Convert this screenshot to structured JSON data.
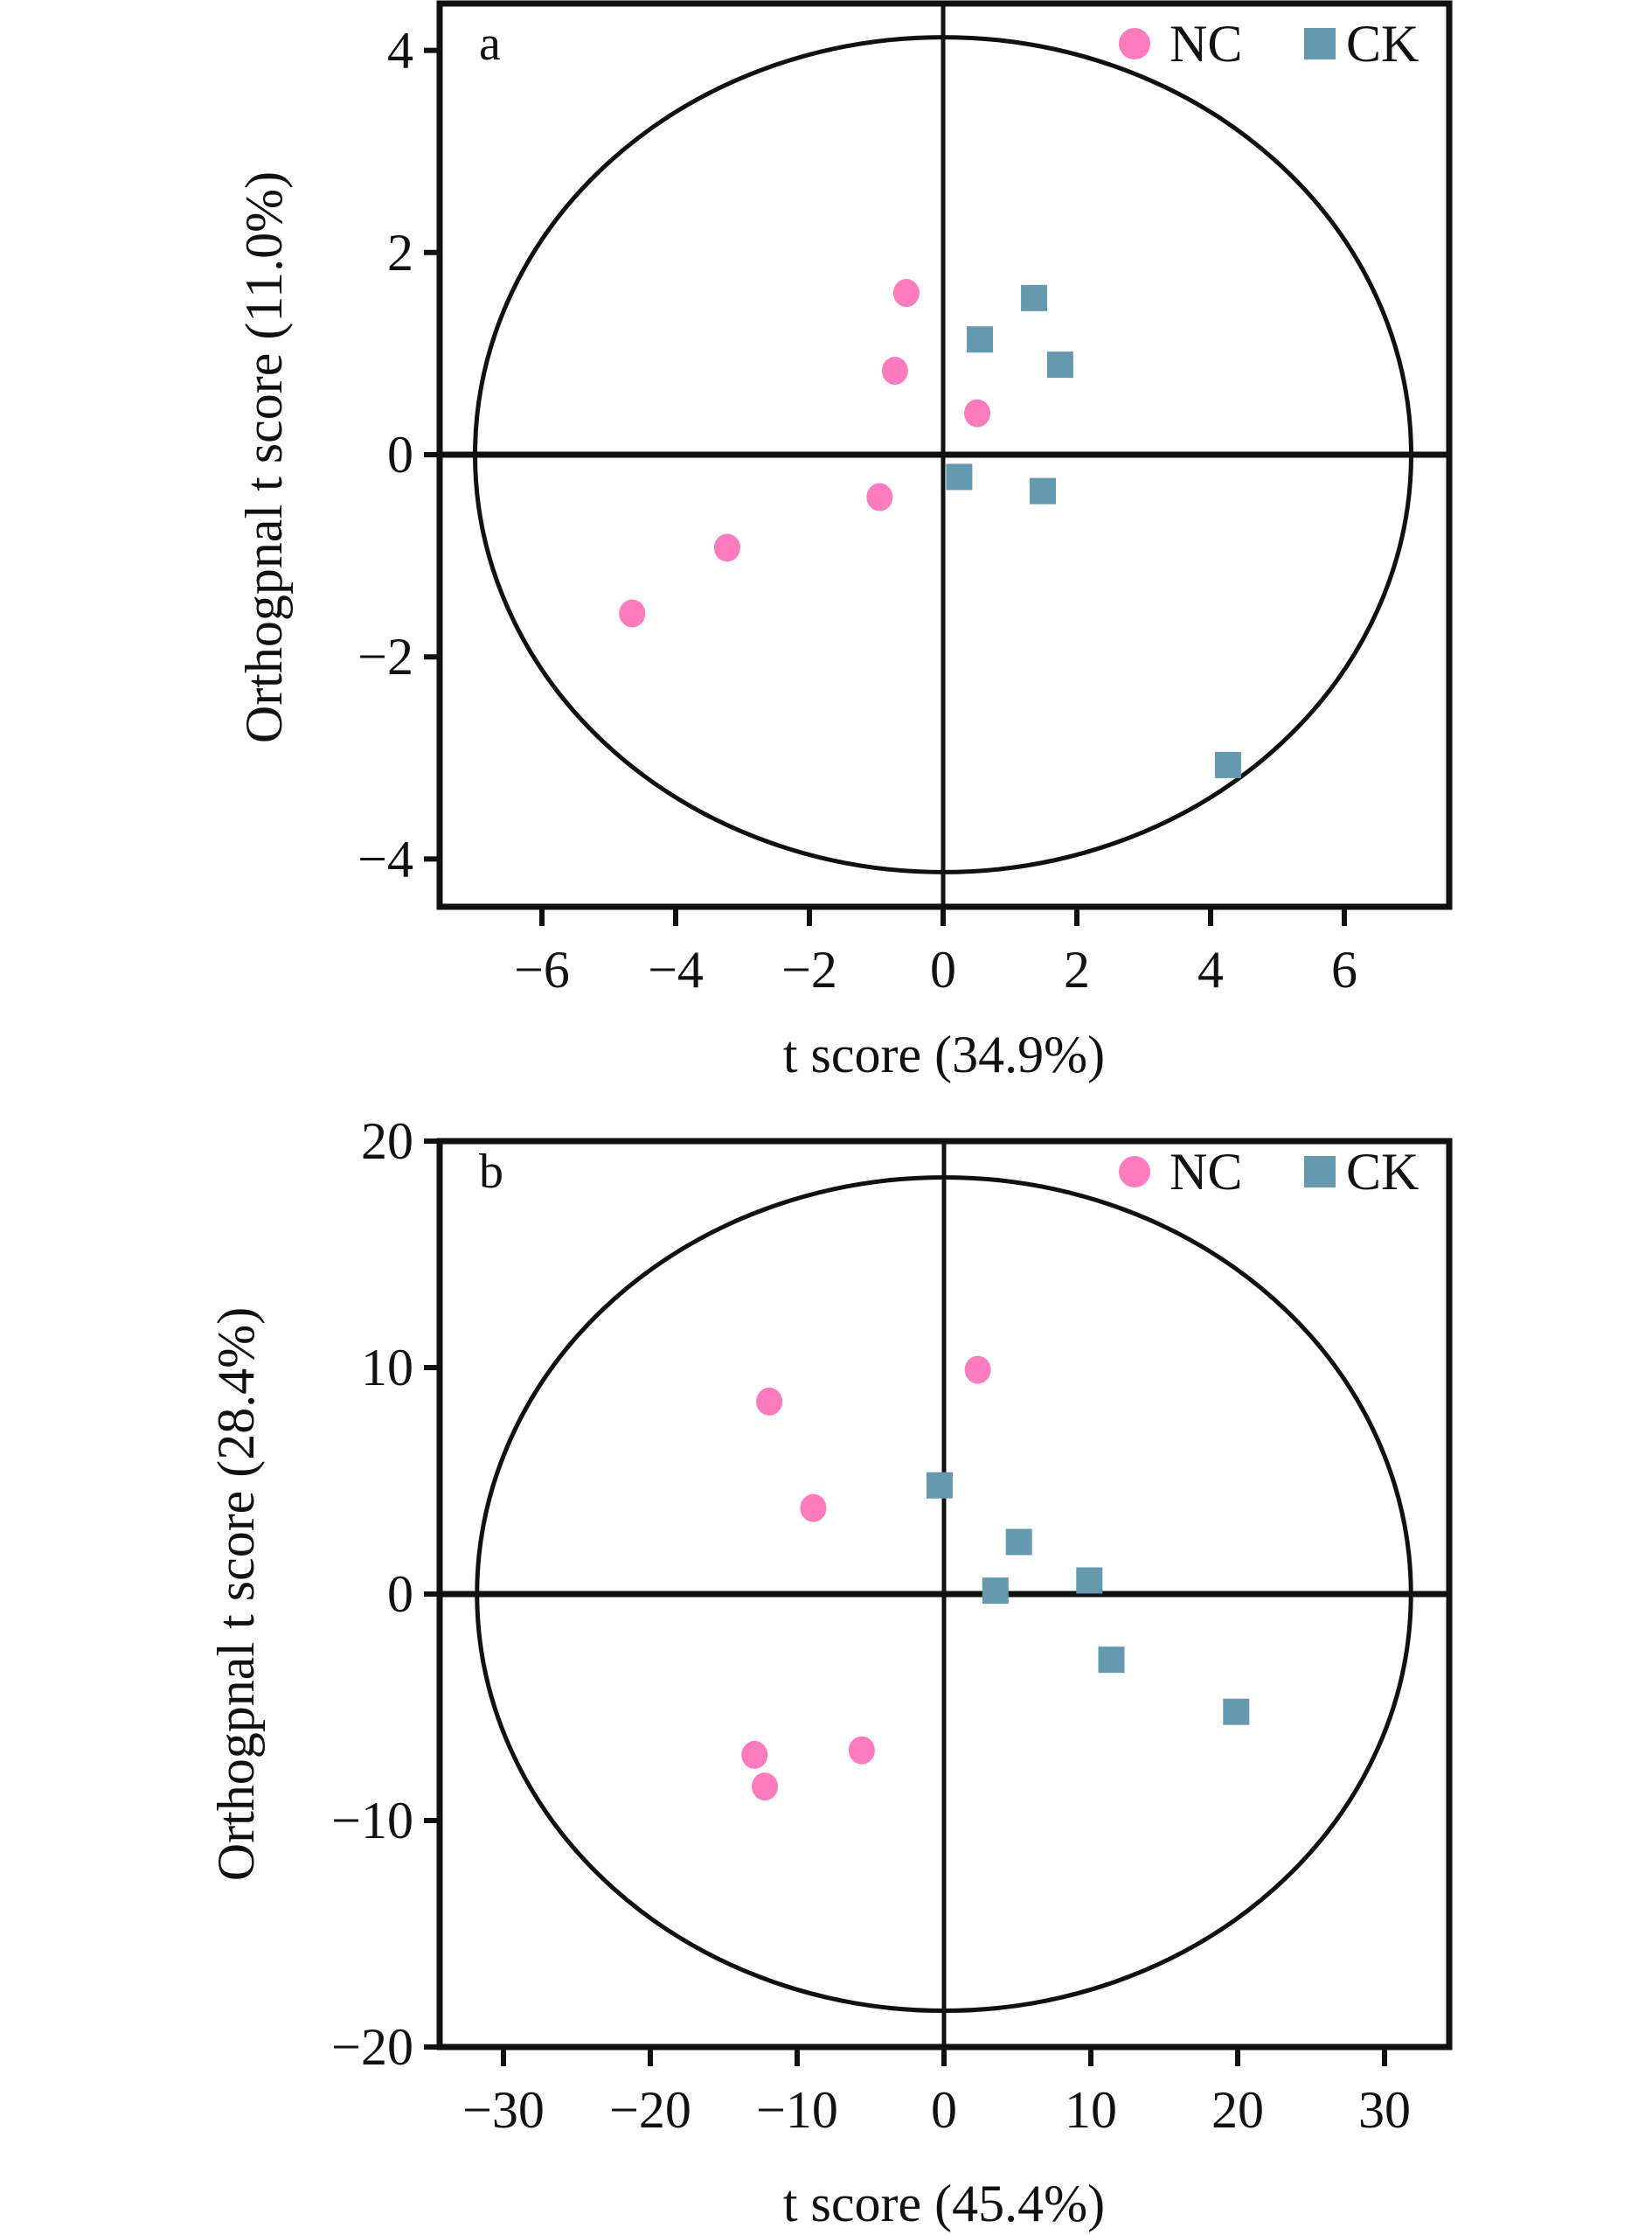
{
  "chart_data": [
    {
      "type": "scatter",
      "panel_label": "a",
      "xlabel": "t score (34.9%)",
      "ylabel": "Orthogpnal t score (11.0%)",
      "xlim": [
        -7.5,
        7.5
      ],
      "ylim": [
        -4.4,
        4.4
      ],
      "xticks": [
        -6,
        -4,
        -2,
        0,
        2,
        4,
        6
      ],
      "yticks": [
        -4,
        -2,
        0,
        2,
        4
      ],
      "xtick_labels": [
        "−6",
        "−4",
        "−2",
        "0",
        "2",
        "4",
        "6"
      ],
      "ytick_labels": [
        "−4",
        "−2",
        "0",
        "2",
        "4"
      ],
      "ellipse": {
        "cx": 0,
        "cy": 0,
        "rx": 7.0,
        "ry": 4.13
      },
      "grid": false,
      "zero_lines": true,
      "legend_position": "top-right",
      "series": [
        {
          "name": "NC",
          "marker": "circle",
          "color": "#ff7bbf",
          "points": [
            [
              -0.55,
              1.6
            ],
            [
              -0.72,
              0.83
            ],
            [
              0.51,
              0.41
            ],
            [
              -0.95,
              -0.42
            ],
            [
              -3.23,
              -0.92
            ],
            [
              -4.65,
              -1.57
            ]
          ]
        },
        {
          "name": "CK",
          "marker": "square",
          "color": "#6699b0",
          "points": [
            [
              1.36,
              1.55
            ],
            [
              0.55,
              1.14
            ],
            [
              1.75,
              0.89
            ],
            [
              0.24,
              -0.22
            ],
            [
              1.49,
              -0.36
            ],
            [
              4.26,
              -3.07
            ]
          ]
        }
      ]
    },
    {
      "type": "scatter",
      "panel_label": "b",
      "xlabel": "t score (45.4%)",
      "ylabel": "Orthogpnal t score (28.4%)",
      "xlim": [
        -35,
        35
      ],
      "ylim": [
        -20,
        20
      ],
      "xticks": [
        -30,
        -20,
        -10,
        0,
        10,
        20,
        30
      ],
      "yticks": [
        -20,
        -10,
        0,
        10,
        20
      ],
      "xtick_labels": [
        "−30",
        "−20",
        "−10",
        "0",
        "10",
        "20",
        "30"
      ],
      "ytick_labels": [
        "−20",
        "−10",
        "0",
        "10",
        "20"
      ],
      "ellipse": {
        "cx": 0,
        "cy": 0,
        "rx": 31.8,
        "ry": 18.4
      },
      "grid": false,
      "zero_lines": true,
      "legend_position": "top-right",
      "series": [
        {
          "name": "NC",
          "marker": "circle",
          "color": "#ff7bbf",
          "points": [
            [
              2.3,
              9.9
            ],
            [
              -11.9,
              8.5
            ],
            [
              -8.9,
              3.8
            ],
            [
              -12.9,
              -7.1
            ],
            [
              -12.2,
              -8.5
            ],
            [
              -5.6,
              -6.9
            ]
          ]
        },
        {
          "name": "CK",
          "marker": "square",
          "color": "#6699b0",
          "points": [
            [
              -0.3,
              4.8
            ],
            [
              5.1,
              2.3
            ],
            [
              3.5,
              0.15
            ],
            [
              9.9,
              0.6
            ],
            [
              11.4,
              -2.9
            ],
            [
              19.9,
              -5.2
            ]
          ]
        }
      ]
    }
  ]
}
